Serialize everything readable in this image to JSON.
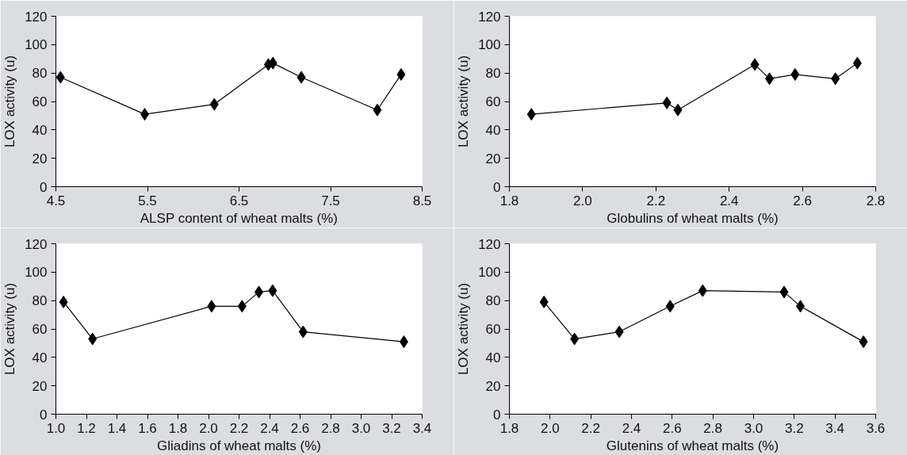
{
  "chart_data": [
    {
      "type": "line",
      "xlabel": "ALSP content of wheat malts (%)",
      "ylabel": "LOX activity (u)",
      "marker": "diamond",
      "line_style": "solid",
      "grid": false,
      "xlim": [
        4.5,
        8.5
      ],
      "xticks": [
        4.5,
        5.5,
        6.5,
        7.5,
        8.5
      ],
      "ylim": [
        0,
        120
      ],
      "yticks": [
        0,
        20,
        40,
        60,
        80,
        100,
        120
      ],
      "x": [
        4.55,
        5.47,
        6.23,
        6.82,
        6.87,
        7.18,
        8.01,
        8.27
      ],
      "series": [
        {
          "color": "#000000",
          "values": [
            77,
            51,
            58,
            86,
            87,
            77,
            54,
            79
          ]
        }
      ]
    },
    {
      "type": "line",
      "xlabel": "Globulins of wheat malts (%)",
      "ylabel": "LOX activity (u)",
      "marker": "diamond",
      "line_style": "solid",
      "grid": false,
      "xlim": [
        1.8,
        2.8
      ],
      "xticks": [
        {
          "value": 1.8,
          "label": "1.8"
        },
        {
          "value": 2.0,
          "label": "2.0"
        },
        {
          "value": 2.2,
          "label": "2.2"
        },
        {
          "value": 2.4,
          "label": "2.4"
        },
        {
          "value": 2.6,
          "label": "2.6"
        },
        {
          "value": 2.8,
          "label": "2.8"
        }
      ],
      "ylim": [
        0,
        120
      ],
      "yticks": [
        0,
        20,
        40,
        60,
        80,
        100,
        120
      ],
      "x": [
        1.86,
        2.23,
        2.26,
        2.47,
        2.51,
        2.58,
        2.69,
        2.75
      ],
      "series": [
        {
          "color": "#000000",
          "values": [
            51,
            59,
            54,
            86,
            76,
            79,
            76,
            87
          ]
        }
      ]
    },
    {
      "type": "line",
      "xlabel": "Gliadins of wheat malts (%)",
      "ylabel": "LOX activity (u)",
      "marker": "diamond",
      "line_style": "solid",
      "grid": false,
      "xlim": [
        1.0,
        3.4
      ],
      "xticks": [
        {
          "value": 1.0,
          "label": "1.0"
        },
        {
          "value": 1.2,
          "label": "1.2"
        },
        {
          "value": 1.4,
          "label": "1.4"
        },
        {
          "value": 1.6,
          "label": "1.6"
        },
        {
          "value": 1.8,
          "label": "1.8"
        },
        {
          "value": 2.0,
          "label": "2.0"
        },
        {
          "value": 2.2,
          "label": "2.2"
        },
        {
          "value": 2.4,
          "label": "2.4"
        },
        {
          "value": 2.6,
          "label": "2.6"
        },
        {
          "value": 2.8,
          "label": "2.8"
        },
        {
          "value": 3.0,
          "label": "3.0"
        },
        {
          "value": 3.2,
          "label": "3.2"
        },
        {
          "value": 3.4,
          "label": "3.4"
        }
      ],
      "ylim": [
        0,
        120
      ],
      "yticks": [
        0,
        20,
        40,
        60,
        80,
        100,
        120
      ],
      "x": [
        1.05,
        1.24,
        2.02,
        2.22,
        2.33,
        2.42,
        2.62,
        3.28
      ],
      "series": [
        {
          "color": "#000000",
          "values": [
            79,
            53,
            76,
            76,
            86,
            87,
            58,
            51
          ]
        }
      ]
    },
    {
      "type": "line",
      "xlabel": "Glutenins of wheat malts (%)",
      "ylabel": "LOX activity (u)",
      "marker": "diamond",
      "line_style": "solid",
      "grid": false,
      "xlim": [
        1.8,
        3.6
      ],
      "xticks": [
        {
          "value": 1.8,
          "label": "1.8"
        },
        {
          "value": 2.0,
          "label": "2.0"
        },
        {
          "value": 2.2,
          "label": "2.2"
        },
        {
          "value": 2.4,
          "label": "2.4"
        },
        {
          "value": 2.6,
          "label": "2.6"
        },
        {
          "value": 2.8,
          "label": "2.8"
        },
        {
          "value": 3.0,
          "label": "3.0"
        },
        {
          "value": 3.2,
          "label": "3.2"
        },
        {
          "value": 3.4,
          "label": "3.4"
        },
        {
          "value": 3.6,
          "label": "3.6"
        }
      ],
      "ylim": [
        0,
        120
      ],
      "yticks": [
        0,
        20,
        40,
        60,
        80,
        100,
        120
      ],
      "x": [
        1.97,
        2.12,
        2.34,
        2.59,
        2.75,
        3.15,
        3.23,
        3.54
      ],
      "series": [
        {
          "color": "#000000",
          "values": [
            79,
            53,
            58,
            76,
            87,
            86,
            76,
            51
          ]
        }
      ]
    }
  ]
}
